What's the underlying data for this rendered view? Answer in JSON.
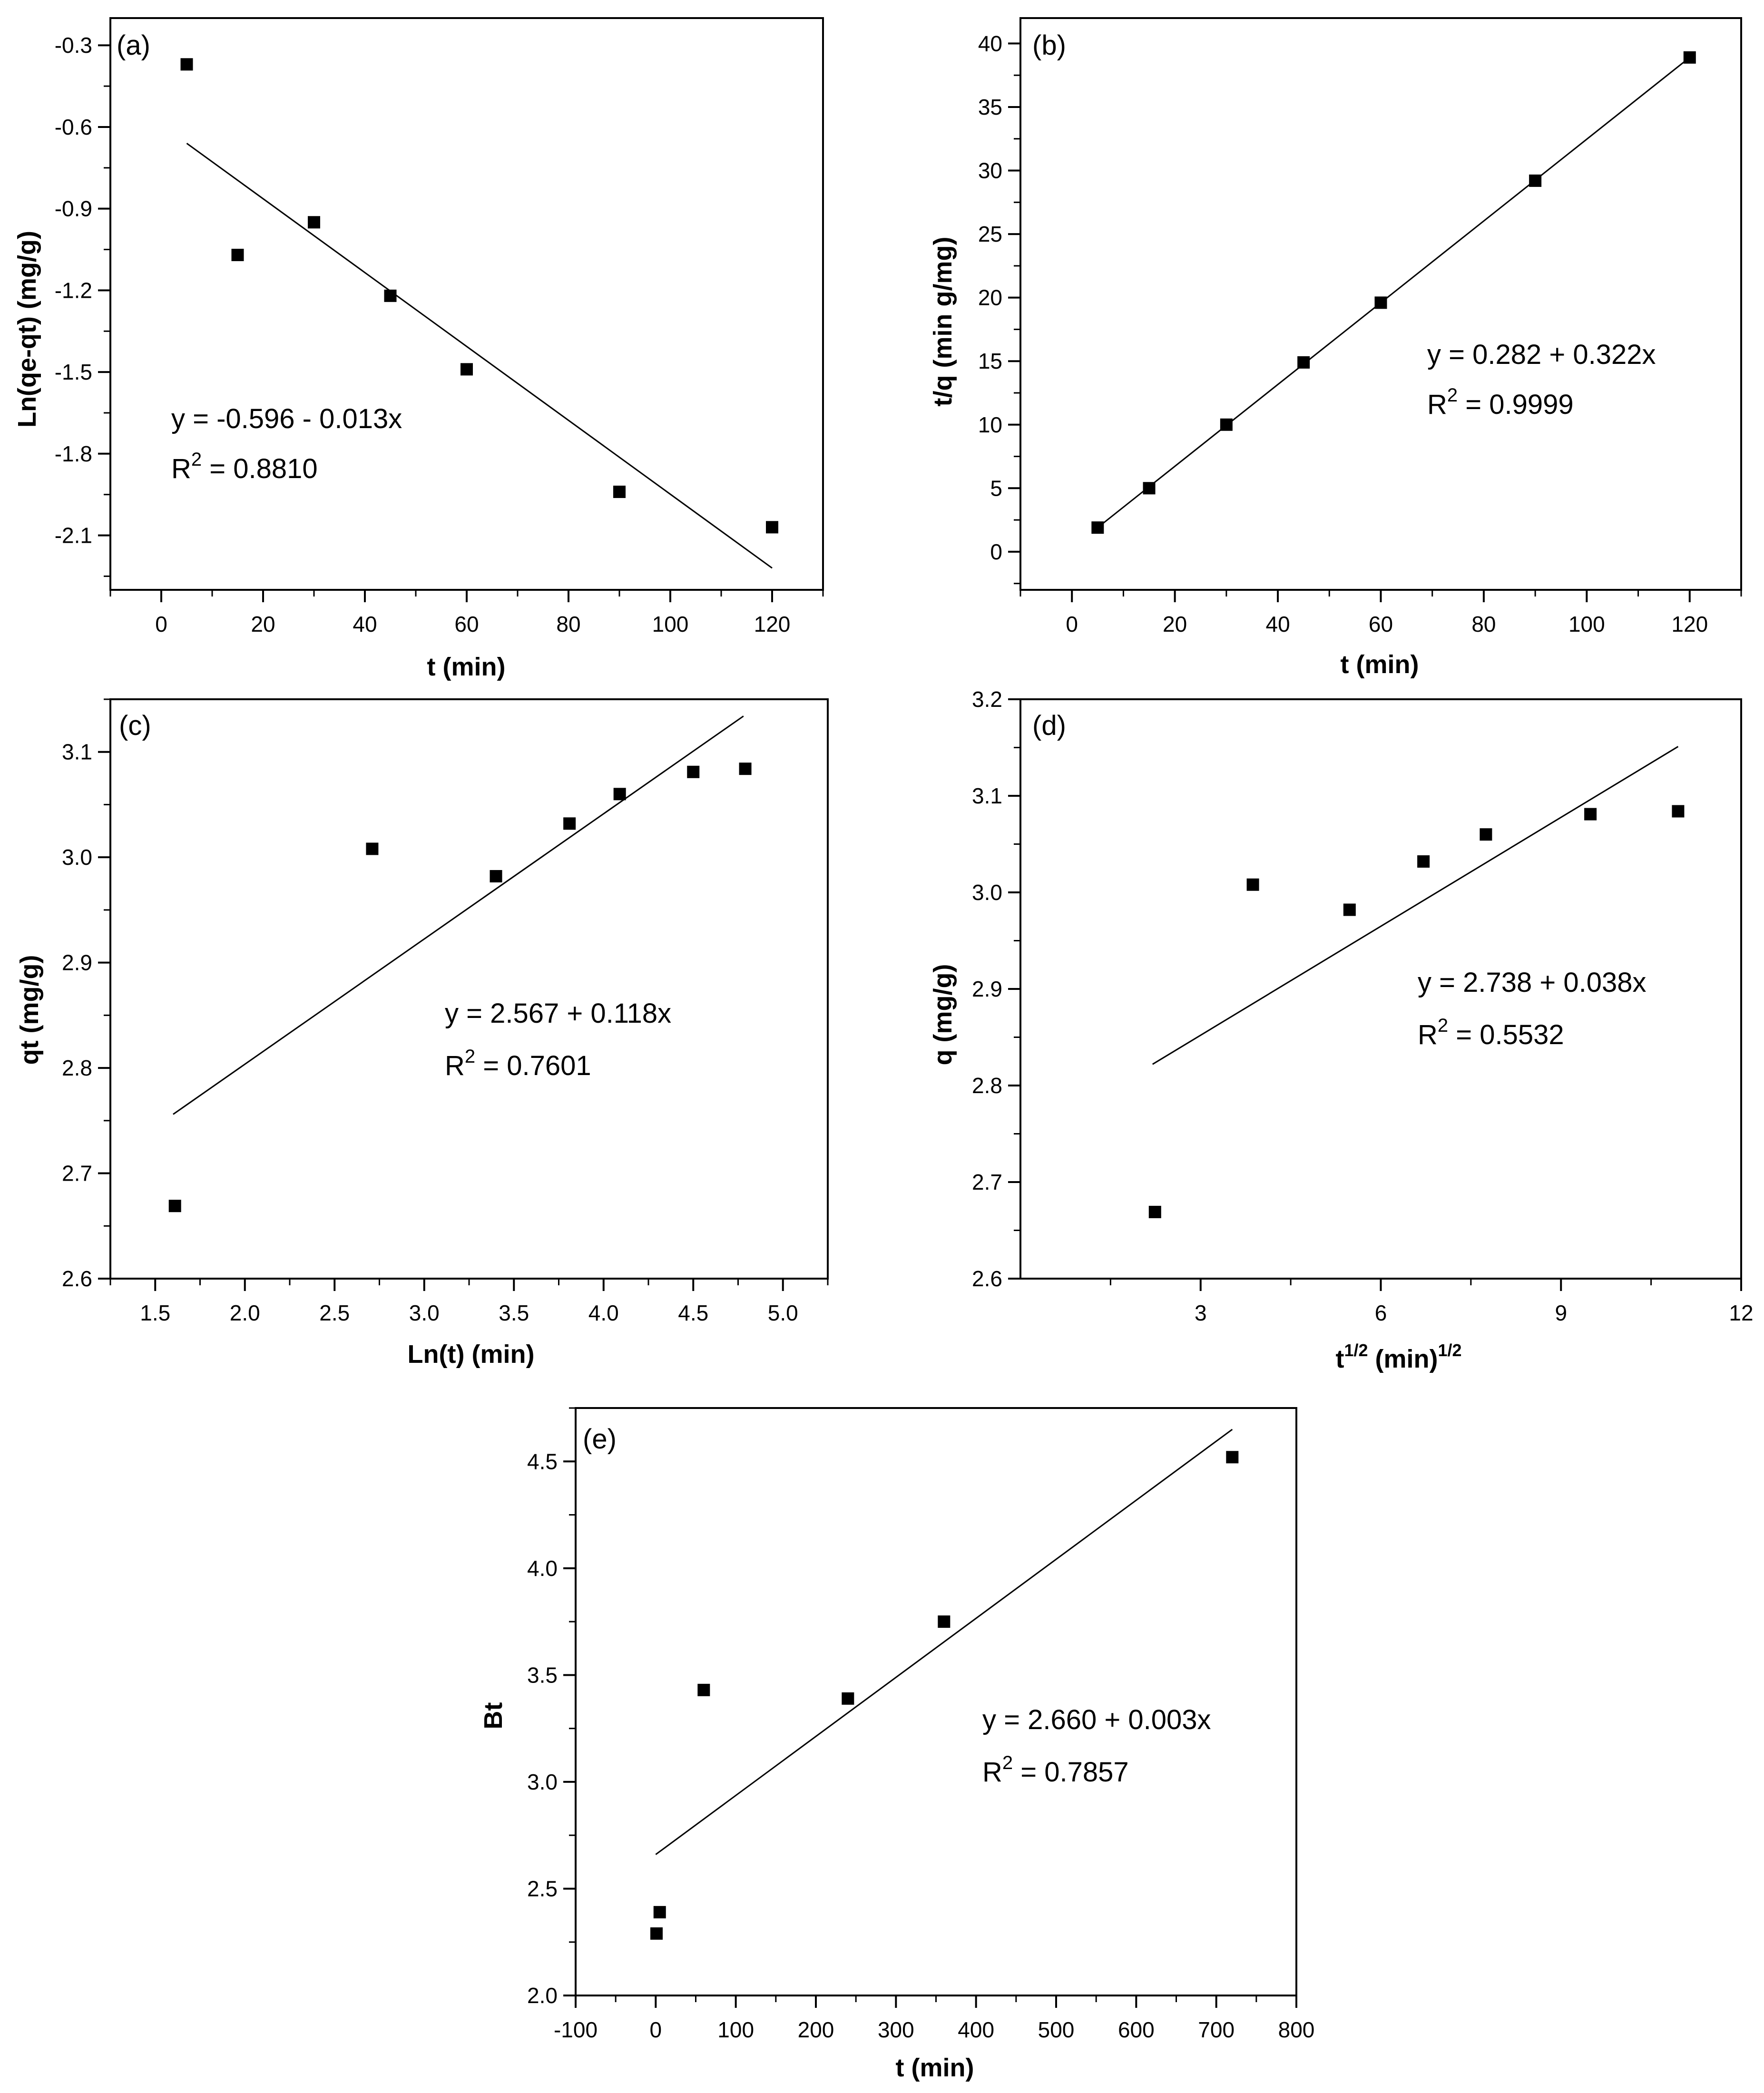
{
  "chart_data": [
    {
      "id": "a",
      "type": "scatter",
      "panel_label": "(a)",
      "xlabel": "t (min)",
      "ylabel": "Ln(qe-qt) (mg/g)",
      "xlim": [
        -10,
        130
      ],
      "ylim": [
        -2.3,
        -0.2
      ],
      "xticks": [
        0,
        20,
        40,
        60,
        80,
        100,
        120
      ],
      "yticks": [
        -0.3,
        -0.6,
        -0.9,
        -1.2,
        -1.5,
        -1.8,
        -2.1
      ],
      "xtick_labels": [
        "0",
        "20",
        "40",
        "60",
        "80",
        "100",
        "120"
      ],
      "ytick_labels": [
        "-0.3",
        "-0.6",
        "-0.9",
        "-1.2",
        "-1.5",
        "-1.8",
        "-2.1"
      ],
      "points": {
        "x": [
          5,
          15,
          30,
          45,
          60,
          90,
          120
        ],
        "y": [
          -0.37,
          -1.07,
          -0.95,
          -1.22,
          -1.49,
          -1.94,
          -2.07
        ]
      },
      "fit_line": {
        "x": [
          5,
          120
        ],
        "y": [
          -0.66,
          -2.22
        ]
      },
      "equation": "y = -0.596 - 0.013x",
      "r2_label": "R",
      "r2_sup": "2",
      "r2_value": " = 0.8810"
    },
    {
      "id": "b",
      "type": "scatter",
      "panel_label": "(b)",
      "xlabel": "t (min)",
      "ylabel": "t/q (min g/mg)",
      "xlim": [
        -10,
        130
      ],
      "ylim": [
        -3,
        42
      ],
      "xticks": [
        0,
        20,
        40,
        60,
        80,
        100,
        120
      ],
      "yticks": [
        0,
        5,
        10,
        15,
        20,
        25,
        30,
        35,
        40
      ],
      "xtick_labels": [
        "0",
        "20",
        "40",
        "60",
        "80",
        "100",
        "120"
      ],
      "ytick_labels": [
        "0",
        "5",
        "10",
        "15",
        "20",
        "25",
        "30",
        "35",
        "40"
      ],
      "points": {
        "x": [
          5,
          15,
          30,
          45,
          60,
          90,
          120
        ],
        "y": [
          1.9,
          5.0,
          10.0,
          14.9,
          19.6,
          29.2,
          38.9
        ]
      },
      "fit_line": {
        "x": [
          5,
          120
        ],
        "y": [
          1.9,
          38.9
        ]
      },
      "equation": "y = 0.282 + 0.322x",
      "r2_label": "R",
      "r2_sup": "2",
      "r2_value": " = 0.9999"
    },
    {
      "id": "c",
      "type": "scatter",
      "panel_label": "(c)",
      "xlabel": "Ln(t) (min)",
      "ylabel": "qt (mg/g)",
      "xlim": [
        1.25,
        5.25
      ],
      "ylim": [
        2.6,
        3.15
      ],
      "xticks": [
        1.5,
        2.0,
        2.5,
        3.0,
        3.5,
        4.0,
        4.5,
        5.0
      ],
      "yticks": [
        2.6,
        2.7,
        2.8,
        2.9,
        3.0,
        3.1
      ],
      "xtick_labels": [
        "1.5",
        "2.0",
        "2.5",
        "3.0",
        "3.5",
        "4.0",
        "4.5",
        "5.0"
      ],
      "ytick_labels": [
        "2.6",
        "2.7",
        "2.8",
        "2.9",
        "3.0",
        "3.1"
      ],
      "points": {
        "x": [
          1.61,
          2.71,
          3.4,
          3.81,
          4.09,
          4.5,
          4.79
        ],
        "y": [
          2.669,
          3.008,
          2.982,
          3.032,
          3.06,
          3.081,
          3.084
        ]
      },
      "fit_line": {
        "x": [
          1.6,
          4.78
        ],
        "y": [
          2.756,
          3.134
        ]
      },
      "equation": "y = 2.567 + 0.118x",
      "r2_label": "R",
      "r2_sup": "2",
      "r2_value": " = 0.7601"
    },
    {
      "id": "d",
      "type": "scatter",
      "panel_label": "(d)",
      "xlabel_main": "t",
      "xlabel_sup1": "1/2",
      "xlabel_mid": " (min)",
      "xlabel_sup2": "1/2",
      "ylabel": "q (mg/g)",
      "xlim": [
        0,
        12
      ],
      "ylim": [
        2.6,
        3.2
      ],
      "xticks": [
        3,
        6,
        9,
        12
      ],
      "yticks": [
        2.6,
        2.7,
        2.8,
        2.9,
        3.0,
        3.1,
        3.2
      ],
      "xtick_labels": [
        "3",
        "6",
        "9",
        "12"
      ],
      "ytick_labels": [
        "2.6",
        "2.7",
        "2.8",
        "2.9",
        "3.0",
        "3.1",
        "3.2"
      ],
      "points": {
        "x": [
          2.24,
          3.87,
          5.48,
          6.71,
          7.75,
          9.49,
          10.95
        ],
        "y": [
          2.669,
          3.008,
          2.982,
          3.032,
          3.06,
          3.081,
          3.084
        ]
      },
      "fit_line": {
        "x": [
          2.2,
          10.95
        ],
        "y": [
          2.822,
          3.151
        ]
      },
      "equation": "y = 2.738 + 0.038x",
      "r2_label": "R",
      "r2_sup": "2",
      "r2_value": " = 0.5532"
    },
    {
      "id": "e",
      "type": "scatter",
      "panel_label": "(e)",
      "xlabel": "t (min)",
      "ylabel": "Bt",
      "xlim": [
        -100,
        800
      ],
      "ylim": [
        2.0,
        4.75
      ],
      "xticks": [
        -100,
        0,
        100,
        200,
        300,
        400,
        500,
        600,
        700,
        800
      ],
      "yticks": [
        2.0,
        2.5,
        3.0,
        3.5,
        4.0,
        4.5
      ],
      "xtick_labels": [
        "-100",
        "0",
        "100",
        "200",
        "300",
        "400",
        "500",
        "600",
        "700",
        "800"
      ],
      "ytick_labels": [
        "2.0",
        "2.5",
        "3.0",
        "3.5",
        "4.0",
        "4.5"
      ],
      "points": {
        "x": [
          1,
          5,
          60,
          240,
          360,
          720
        ],
        "y": [
          2.29,
          2.39,
          3.43,
          3.39,
          3.75,
          4.52
        ]
      },
      "fit_line": {
        "x": [
          0,
          720
        ],
        "y": [
          2.66,
          4.65
        ]
      },
      "equation": "y = 2.660 + 0.003x",
      "r2_label": "R",
      "r2_sup": "2",
      "r2_value": " = 0.7857"
    }
  ]
}
